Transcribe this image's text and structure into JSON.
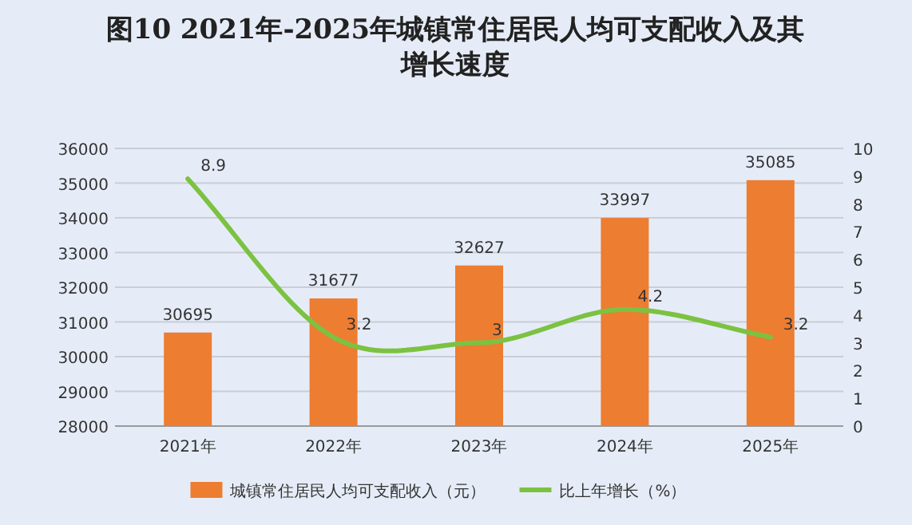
{
  "chart_data": {
    "type": "bar",
    "title": "图10   2021年-2025年城镇常住居民人均可支配收入及其增长速度",
    "categories": [
      "2021年",
      "2022年",
      "2023年",
      "2024年",
      "2025年"
    ],
    "series": [
      {
        "name": "城镇常住居民人均可支配收入（元）",
        "color": "#ed7d31",
        "values": [
          30695,
          31677,
          32627,
          33997,
          35085
        ]
      },
      {
        "name": "比上年增长（%）",
        "type": "line",
        "axis": "y2",
        "color": "#7cc242",
        "values": [
          8.9,
          3.2,
          3,
          4.2,
          3.2
        ]
      }
    ],
    "ylim": [
      28000,
      36000
    ],
    "yticks": [
      28000,
      29000,
      30000,
      31000,
      32000,
      33000,
      34000,
      35000,
      36000
    ],
    "y2lim": [
      0,
      10
    ],
    "y2ticks": [
      0,
      1,
      2,
      3,
      4,
      5,
      6,
      7,
      8,
      9,
      10
    ],
    "grid": "y",
    "legend": "bottom",
    "data_labels": true
  }
}
